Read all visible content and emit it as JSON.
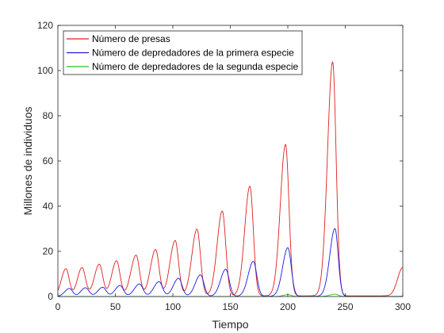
{
  "chart_data": {
    "type": "line",
    "title": "",
    "xlabel": "Tiempo",
    "ylabel": "Millones de individuos",
    "xlim": [
      0,
      300
    ],
    "ylim": [
      0,
      120
    ],
    "xticks": [
      "0",
      "50",
      "100",
      "150",
      "200",
      "250",
      "300"
    ],
    "yticks": [
      "0",
      "20",
      "40",
      "60",
      "80",
      "100",
      "120"
    ],
    "grid": false,
    "legend_position": "top-left",
    "series": [
      {
        "name": "Número de presas",
        "color": "#e01e1e",
        "peaks": [
          {
            "t": 7,
            "v": 12.0
          },
          {
            "t": 21,
            "v": 12.5
          },
          {
            "t": 36,
            "v": 14.0
          },
          {
            "t": 51,
            "v": 15.5
          },
          {
            "t": 68,
            "v": 18.0
          },
          {
            "t": 85,
            "v": 20.5
          },
          {
            "t": 102,
            "v": 24.5
          },
          {
            "t": 121,
            "v": 29.5
          },
          {
            "t": 143,
            "v": 37.5
          },
          {
            "t": 167,
            "v": 48.5
          },
          {
            "t": 198,
            "v": 67.0
          },
          {
            "t": 239,
            "v": 103.5
          },
          {
            "t": 300,
            "v": 12.5
          }
        ]
      },
      {
        "name": "Número de depredadores de la primera especie",
        "color": "#1a1ae0",
        "peaks": [
          {
            "t": 10,
            "v": 3.5
          },
          {
            "t": 24,
            "v": 3.8
          },
          {
            "t": 39,
            "v": 4.0
          },
          {
            "t": 54,
            "v": 4.8
          },
          {
            "t": 71,
            "v": 5.5
          },
          {
            "t": 88,
            "v": 6.5
          },
          {
            "t": 105,
            "v": 8.0
          },
          {
            "t": 124,
            "v": 9.5
          },
          {
            "t": 146,
            "v": 12.0
          },
          {
            "t": 170,
            "v": 15.5
          },
          {
            "t": 200,
            "v": 21.5
          },
          {
            "t": 241,
            "v": 30.0
          }
        ]
      },
      {
        "name": "Número de depredadores de la segunda especie",
        "color": "#20c020",
        "peaks": [
          {
            "t": 200,
            "v": 0.8
          },
          {
            "t": 241,
            "v": 1.0
          }
        ]
      }
    ]
  }
}
